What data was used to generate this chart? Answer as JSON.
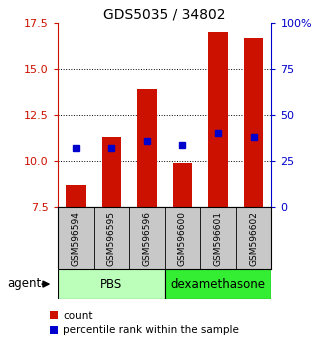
{
  "title": "GDS5035 / 34802",
  "samples": [
    "GSM596594",
    "GSM596595",
    "GSM596596",
    "GSM596600",
    "GSM596601",
    "GSM596602"
  ],
  "red_values": [
    8.7,
    11.3,
    13.9,
    9.9,
    17.0,
    16.7
  ],
  "blue_values": [
    10.72,
    10.72,
    11.1,
    10.9,
    11.5,
    11.3
  ],
  "ylim": [
    7.5,
    17.5
  ],
  "yticks_left": [
    7.5,
    10.0,
    12.5,
    15.0,
    17.5
  ],
  "yticks_right_vals": [
    0,
    25,
    50,
    75,
    100
  ],
  "yticks_right_labels": [
    "0",
    "25",
    "50",
    "75",
    "100%"
  ],
  "group_pbs_label": "PBS",
  "group_dex_label": "dexamethasone",
  "group_pbs_color": "#bbffbb",
  "group_dex_color": "#33ee33",
  "agent_label": "agent",
  "bar_color": "#cc1100",
  "dot_color": "#0000cc",
  "bar_width": 0.55,
  "xlabel_bg": "#c8c8c8",
  "left_tick_color": "#cc1100",
  "right_tick_color": "#0000cc",
  "legend_count_label": "count",
  "legend_pct_label": "percentile rank within the sample",
  "title_fontsize": 10,
  "tick_fontsize": 8,
  "label_fontsize": 8,
  "group_fontsize": 8.5,
  "legend_fontsize": 7.5
}
